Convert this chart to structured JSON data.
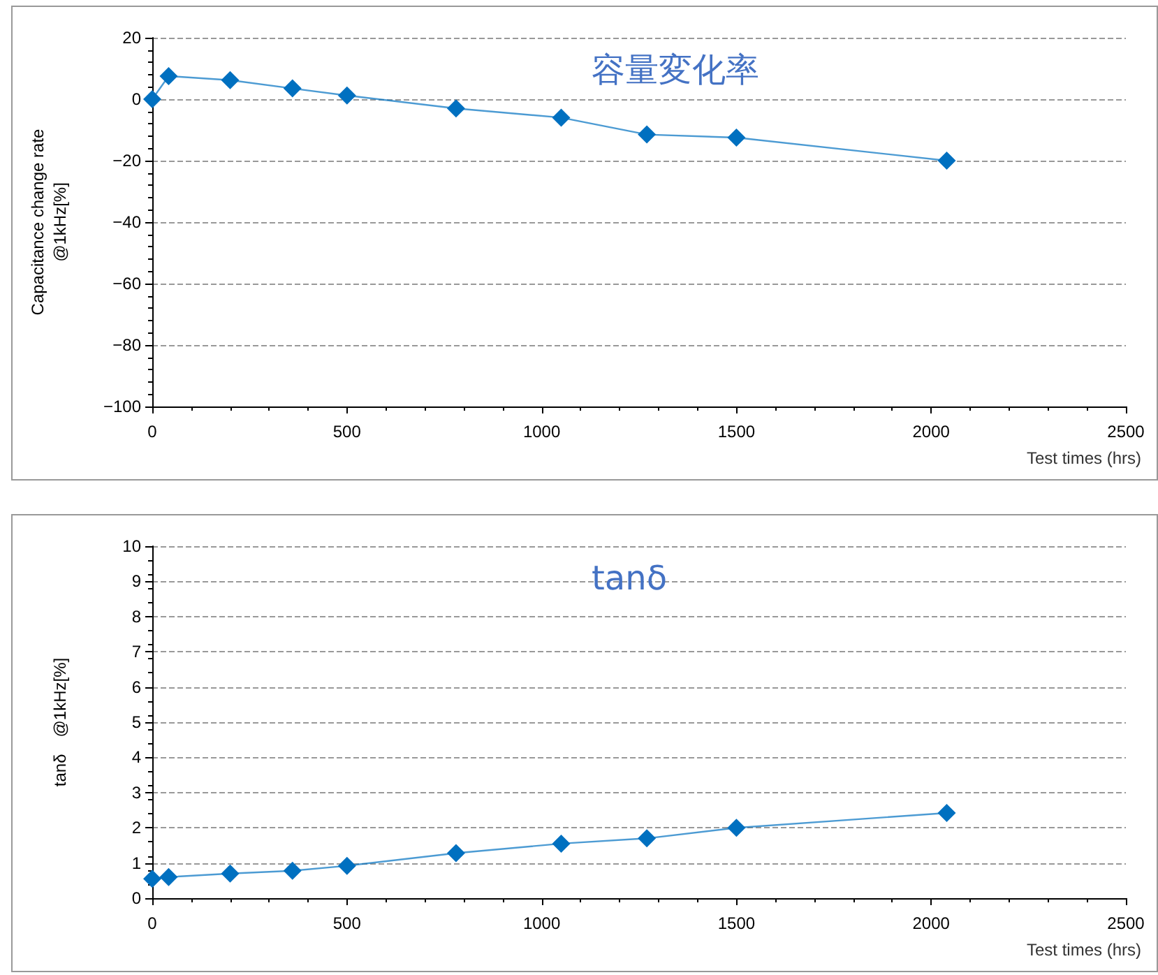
{
  "chart_data": [
    {
      "type": "line",
      "title": "容量変化率",
      "xlabel": "Test times (hrs)",
      "ylabel": "Capacitance change rate\n@1kHz[%]",
      "x": [
        0,
        42,
        200,
        360,
        500,
        780,
        1050,
        1270,
        1500,
        2040
      ],
      "series": [
        {
          "color": "#0070c0",
          "values": [
            0,
            7.5,
            6.2,
            3.5,
            1.2,
            -3,
            -6,
            -11.5,
            -12.5,
            -20
          ]
        }
      ],
      "xlim": [
        0,
        2500
      ],
      "xticks": [
        0,
        500,
        1000,
        1500,
        2000,
        2500
      ],
      "ylim": [
        -100,
        20
      ],
      "yticks": [
        -100,
        -80,
        -60,
        -40,
        -20,
        0,
        20
      ],
      "grid": "y",
      "marker": "diamond",
      "line_style": "solid"
    },
    {
      "type": "line",
      "title": "tanδ",
      "xlabel": "Test times (hrs)",
      "ylabel": "tanδ　@1kHz[%]",
      "x": [
        0,
        42,
        200,
        360,
        500,
        780,
        1050,
        1270,
        1500,
        2040
      ],
      "series": [
        {
          "color": "#0070c0",
          "values": [
            0.55,
            0.6,
            0.7,
            0.78,
            0.92,
            1.28,
            1.55,
            1.7,
            2.0,
            2.42
          ]
        }
      ],
      "xlim": [
        0,
        2500
      ],
      "xticks": [
        0,
        500,
        1000,
        1500,
        2000,
        2500
      ],
      "ylim": [
        0,
        10
      ],
      "yticks": [
        0,
        1,
        2,
        3,
        4,
        5,
        6,
        7,
        8,
        9,
        10
      ],
      "grid": "y",
      "marker": "diamond",
      "line_style": "solid"
    }
  ]
}
